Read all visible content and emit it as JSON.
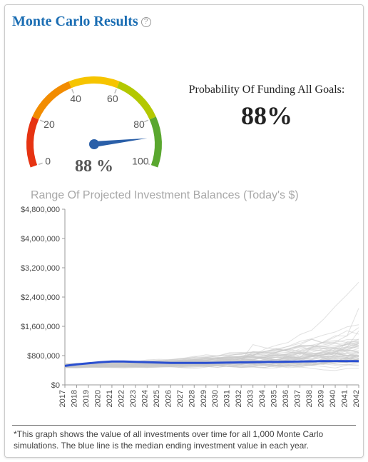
{
  "header": {
    "title": "Monte Carlo Results"
  },
  "gauge": {
    "ticks": [
      0,
      20,
      40,
      60,
      80,
      100
    ],
    "value": 88,
    "value_label": "88 %",
    "colors": {
      "segment_0": "#e63312",
      "segment_20": "#f28c00",
      "segment_40": "#f6c400",
      "segment_60": "#b3c800",
      "segment_80": "#5aa72f",
      "needle": "#2a5fa8",
      "tick_text": "#555555"
    },
    "tick_fontsize": 14,
    "value_fontsize": 24,
    "arc_width": 10
  },
  "probability": {
    "label": "Probability Of Funding All Goals:",
    "value": "88%"
  },
  "chart": {
    "type": "line",
    "title": "Range Of Projected Investment Balances (Today's $)",
    "title_fontsize": 16,
    "title_color": "#a8a8a8",
    "xlim": [
      2017,
      2042
    ],
    "ylim": [
      0,
      4800000
    ],
    "ytick_step": 800000,
    "ytick_labels": [
      "$0",
      "$800,000",
      "$1,600,000",
      "$2,400,000",
      "$3,200,000",
      "$4,000,000",
      "$4,800,000"
    ],
    "xtick_step": 1,
    "xtick_labels": [
      "2017",
      "2018",
      "2019",
      "2020",
      "2021",
      "2022",
      "2023",
      "2024",
      "2025",
      "2026",
      "2027",
      "2028",
      "2029",
      "2030",
      "2031",
      "2032",
      "2033",
      "2034",
      "2035",
      "2036",
      "2037",
      "2038",
      "2039",
      "2040",
      "2041",
      "2042"
    ],
    "background_color": "#ffffff",
    "axis_color": "#9a9a9a",
    "grid": false,
    "sim_line_color": "#c8c8c8",
    "sim_line_width": 1,
    "sim_line_opacity": 0.55,
    "n_sim_lines": 60,
    "median_line_color": "#2a4fd0",
    "median_line_width": 3,
    "median_series": [
      520000,
      560000,
      590000,
      620000,
      640000,
      640000,
      630000,
      620000,
      610000,
      600000,
      600000,
      600000,
      600000,
      605000,
      610000,
      615000,
      620000,
      625000,
      630000,
      635000,
      640000,
      645000,
      648000,
      650000,
      650000,
      650000
    ],
    "label_fontsize": 11,
    "label_color": "#4a4a4a"
  },
  "footnote": "*This graph shows the value of all investments over time for all 1,000 Monte Carlo simulations. The blue line is the median ending investment value in each year."
}
